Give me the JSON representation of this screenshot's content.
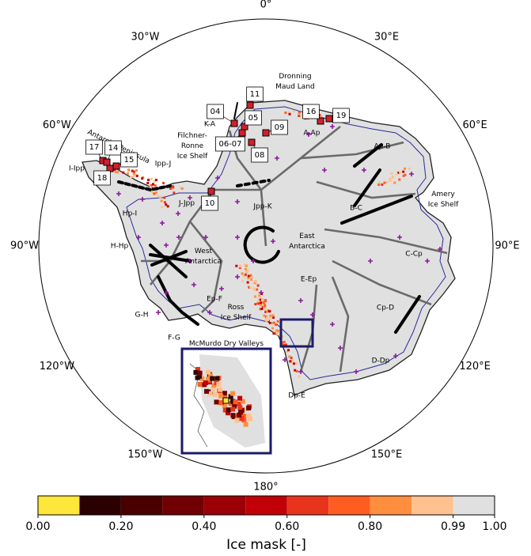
{
  "map": {
    "longitude_labels": [
      "0°",
      "30°E",
      "60°E",
      "90°E",
      "120°E",
      "150°E",
      "180°",
      "150°W",
      "120°W",
      "90°W",
      "60°W",
      "30°W"
    ],
    "regions": [
      "K-A",
      "A-Ap",
      "Ap-B",
      "B-C",
      "C-Cp",
      "Cp-D",
      "D-Dp",
      "Dp-E",
      "E-Ep",
      "Ep-F",
      "F-G",
      "G-H",
      "H-Hp",
      "Hp-I",
      "I-Ipp",
      "Ipp-J",
      "J-Jpp",
      "Jpp-K"
    ],
    "places": [
      {
        "lines": [
          "Dronning",
          "Maud Land"
        ]
      },
      {
        "lines": [
          "Antarctic Peninsula"
        ]
      },
      {
        "lines": [
          "Filchner-",
          "Ronne",
          "Ice Shelf"
        ]
      },
      {
        "lines": [
          "Amery",
          "Ice Shelf"
        ]
      },
      {
        "lines": [
          "East",
          "Antarctica"
        ]
      },
      {
        "lines": [
          "West",
          "Antarctica"
        ]
      },
      {
        "lines": [
          "Ross",
          "Ice Shelf"
        ]
      },
      {
        "lines": [
          "McMurdo Dry Valleys"
        ]
      }
    ],
    "sites": [
      "04",
      "11",
      "05",
      "06-07",
      "09",
      "08",
      "16",
      "19",
      "17",
      "14",
      "15",
      "18",
      "10"
    ]
  },
  "colorbar": {
    "label": "Ice mask [-]",
    "boundaries": [
      0,
      0.1,
      0.2,
      0.3,
      0.4,
      0.5,
      0.6,
      0.7,
      0.8,
      0.9,
      0.99,
      1.0
    ],
    "colors": [
      "#ffe63a",
      "#2b0000",
      "#4b0000",
      "#700003",
      "#9a0006",
      "#c10008",
      "#e8341c",
      "#ff5c20",
      "#ff8e3e",
      "#ffc28e",
      "#e0e0e0"
    ],
    "ticks": [
      {
        "value": 0,
        "label": "0.00"
      },
      {
        "value": 0.2,
        "label": "0.20"
      },
      {
        "value": 0.4,
        "label": "0.40"
      },
      {
        "value": 0.6,
        "label": "0.60"
      },
      {
        "value": 0.8,
        "label": "0.80"
      },
      {
        "value": 0.99,
        "label": "0.99"
      },
      {
        "value": 1.0,
        "label": "1.00"
      }
    ]
  }
}
